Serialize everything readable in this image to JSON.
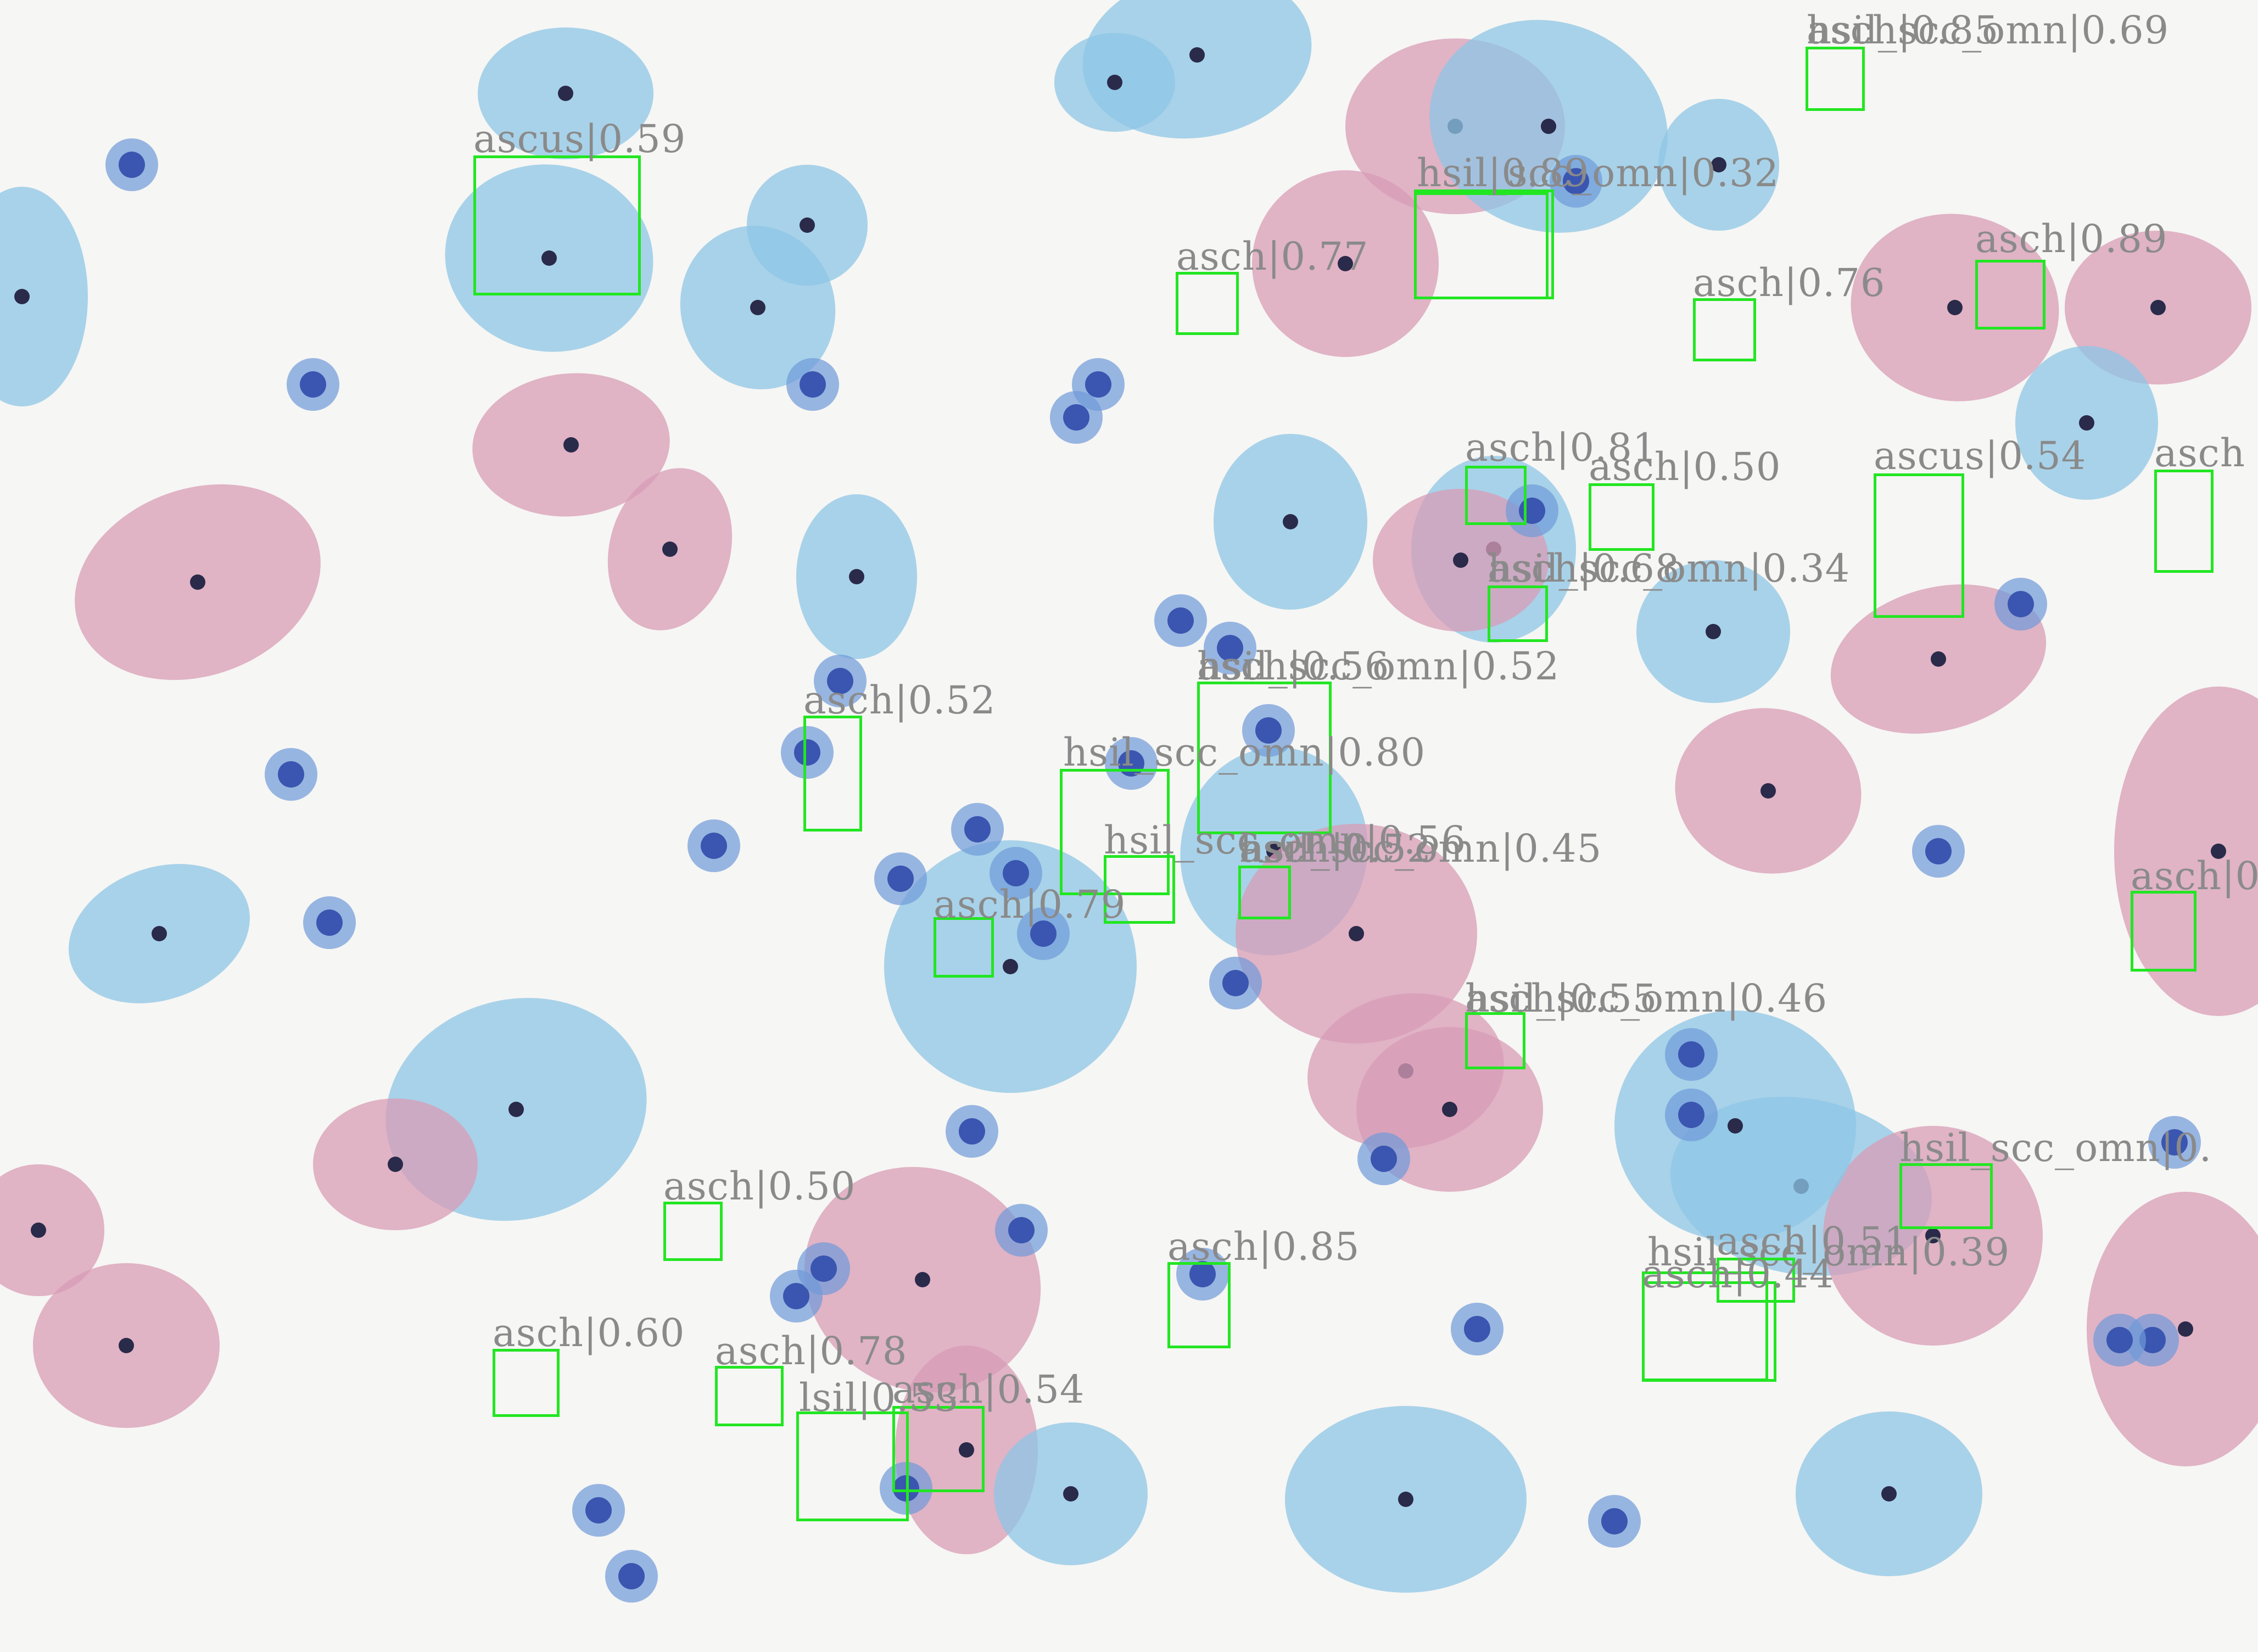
{
  "image": {
    "description_colors": {
      "background": "#f6f6f4",
      "cyan_cell": "#8ec6e6",
      "pink_cell": "#d89cb6",
      "nucleus": "#3a56b0",
      "box": "#22e622",
      "label": "#8a8a8a"
    }
  },
  "detections": [
    {
      "label": "hsil_scc_omn|0.69"
    },
    {
      "label": "asch|0.85"
    },
    {
      "label": "ascus|0.59"
    },
    {
      "label": "hsil_scc_omn|0.32"
    },
    {
      "label": "hsil|0.89"
    },
    {
      "label": "asch|0.77"
    },
    {
      "label": "asch|0.76"
    },
    {
      "label": "asch|0.89"
    },
    {
      "label": "asch|0.81"
    },
    {
      "label": "asch|0.50"
    },
    {
      "label": "ascus|0.54"
    },
    {
      "label": "asch"
    },
    {
      "label": "hsil_scc_omn|0.34"
    },
    {
      "label": "asch|0.68"
    },
    {
      "label": "hsil_scc_omn|0.52"
    },
    {
      "label": "asch|0.56"
    },
    {
      "label": "asch|0.52"
    },
    {
      "label": "hsil_scc_omn|0.80"
    },
    {
      "label": "hsil_scc_omn|0.56"
    },
    {
      "label": "hsil_scc_omn|0.45"
    },
    {
      "label": "asch|0.52"
    },
    {
      "label": "asch|0.79"
    },
    {
      "label": "asch|0"
    },
    {
      "label": "hsil_scc_omn|0.46"
    },
    {
      "label": "asch|0.55"
    },
    {
      "label": "hsil_scc_omn|0."
    },
    {
      "label": "asch|0.50"
    },
    {
      "label": "asch|0.85"
    },
    {
      "label": "hsil_scc_omn|0.39"
    },
    {
      "label": "asch|0.51"
    },
    {
      "label": "asch|0.44"
    },
    {
      "label": "asch|0.60"
    },
    {
      "label": "asch|0.78"
    },
    {
      "label": "asch|0.54"
    },
    {
      "label": "lsil|0.53"
    }
  ]
}
